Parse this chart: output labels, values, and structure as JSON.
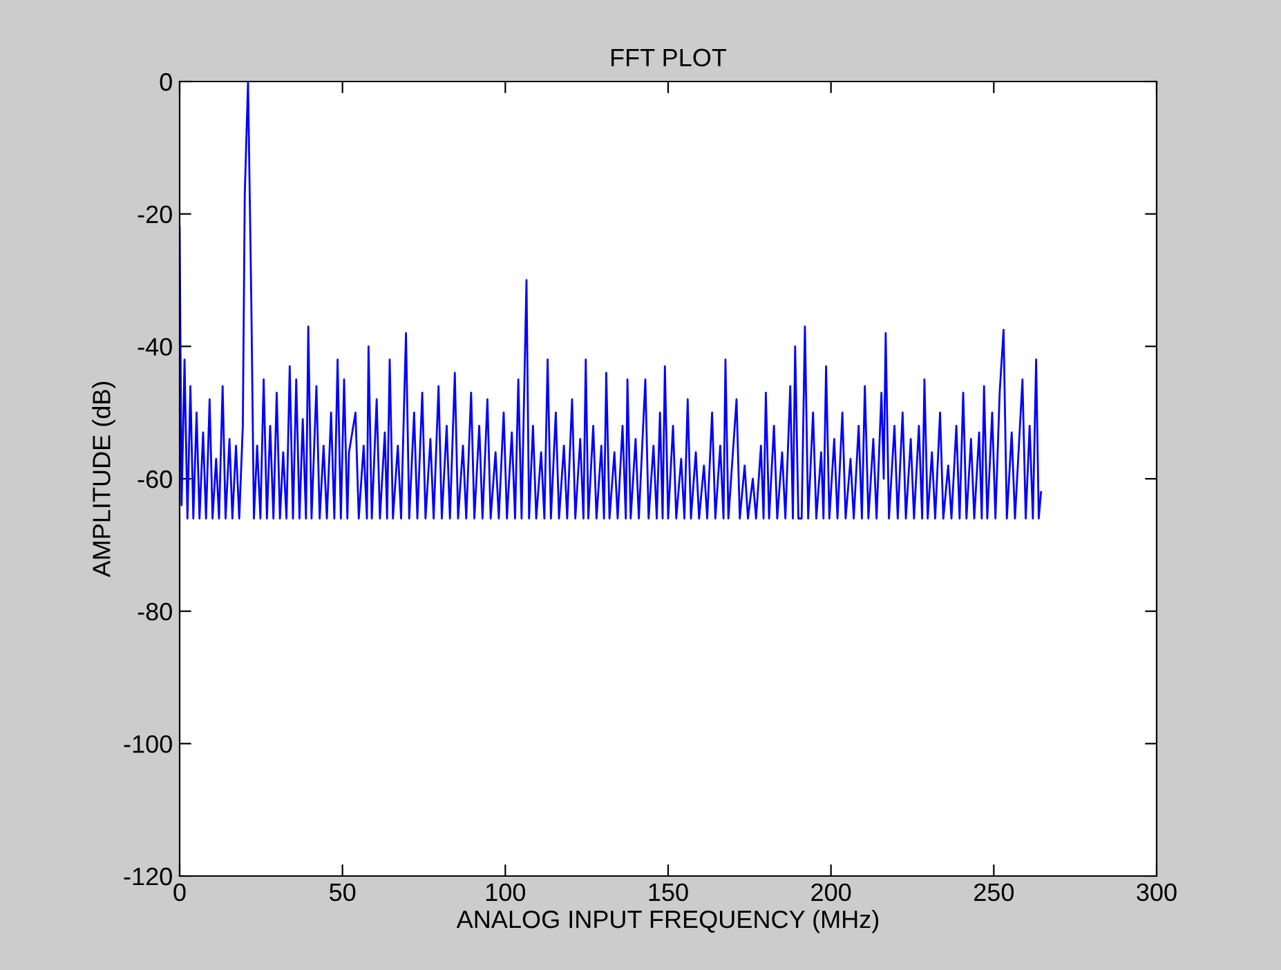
{
  "chart_data": {
    "type": "line",
    "title": "FFT PLOT",
    "xlabel": "ANALOG INPUT FREQUENCY (MHz)",
    "ylabel": "AMPLITUDE (dB)",
    "xlim": [
      0,
      300
    ],
    "ylim": [
      -120,
      0
    ],
    "xticks": [
      0,
      50,
      100,
      150,
      200,
      250,
      300
    ],
    "yticks": [
      -120,
      -100,
      -80,
      -60,
      -40,
      -20,
      0
    ],
    "grid": false,
    "marker": "none",
    "line_style": "solid",
    "series": [
      {
        "color": "#0000ff",
        "x": [
          0,
          0.6,
          1.5,
          2.4,
          3.3,
          4.2,
          5.2,
          6.1,
          7.2,
          8.1,
          9.2,
          10.1,
          11.2,
          12.1,
          13.2,
          14.1,
          15.3,
          16.2,
          17.3,
          18.3,
          19.4,
          20.0,
          21.0,
          22.0,
          22.8,
          23.8,
          24.8,
          25.8,
          26.8,
          27.8,
          28.8,
          29.8,
          30.8,
          31.8,
          32.8,
          33.8,
          34.8,
          35.8,
          36.8,
          37.8,
          38.8,
          39.5,
          40.5,
          42.0,
          43.0,
          44.2,
          45.2,
          46.5,
          47.5,
          48.5,
          49.5,
          50.5,
          51.5,
          52,
          54,
          55,
          56.5,
          57.5,
          58,
          59,
          60.5,
          61.5,
          63,
          63.7,
          64.5,
          65.5,
          67,
          68,
          69.5,
          70.5,
          72,
          73,
          74.5,
          75.5,
          77,
          78,
          79.5,
          80.5,
          82,
          83,
          84.5,
          85.5,
          87,
          88,
          89.5,
          90.5,
          92,
          93,
          94.5,
          95.5,
          97,
          98,
          99.5,
          100.5,
          102,
          103,
          104,
          105,
          106.5,
          107.3,
          108.5,
          109.5,
          111,
          112,
          113,
          114,
          115.5,
          116.5,
          118,
          119,
          120.5,
          121.5,
          123,
          124,
          124.7,
          125.5,
          127,
          128,
          129.5,
          130.3,
          131,
          132,
          133.5,
          134.5,
          136,
          137,
          137.5,
          138.5,
          140,
          141,
          143,
          144,
          145.5,
          146.5,
          147.5,
          148.3,
          149,
          150,
          151.5,
          152.5,
          154,
          155,
          156,
          157,
          158.5,
          159.5,
          161,
          162,
          163.5,
          164.5,
          166,
          167,
          167.6,
          168.5,
          171,
          172,
          173.5,
          174.5,
          176,
          177,
          178.5,
          179.3,
          180,
          181,
          182.5,
          183.5,
          185,
          186,
          187.5,
          188.3,
          189,
          190,
          191,
          192,
          193,
          194.5,
          195.5,
          197,
          197.7,
          198.5,
          199.5,
          201,
          202,
          203.5,
          204.5,
          206,
          207,
          208.5,
          209.5,
          210.4,
          211.5,
          213,
          214,
          215.5,
          216.2,
          216.8,
          217.8,
          219.5,
          220.5,
          222,
          223,
          224.5,
          225.5,
          227,
          228,
          228.7,
          229.7,
          231,
          232,
          233.5,
          234.5,
          236,
          237,
          238.5,
          239.5,
          240.6,
          241.6,
          243,
          244,
          245.5,
          246.3,
          247,
          248,
          249.5,
          250.5,
          251.8,
          253,
          254,
          255.5,
          256.5,
          258.8,
          259.8,
          261,
          262,
          263,
          263.8,
          264.5
        ],
        "values": [
          -22,
          -64,
          -42,
          -66,
          -46,
          -66,
          -50,
          -66,
          -53,
          -66,
          -48,
          -66,
          -57,
          -66,
          -46,
          -66,
          -54,
          -66,
          -55,
          -66,
          -52,
          -17,
          0,
          -33,
          -66,
          -55,
          -66,
          -45,
          -66,
          -52,
          -66,
          -47,
          -66,
          -56,
          -66,
          -43,
          -66,
          -45,
          -66,
          -51,
          -66,
          -37,
          -66,
          -46,
          -66,
          -55,
          -66,
          -50,
          -66,
          -42,
          -66,
          -45,
          -66,
          -56,
          -50,
          -66,
          -55,
          -66,
          -40,
          -66,
          -48,
          -66,
          -53,
          -66,
          -42,
          -66,
          -55,
          -66,
          -38,
          -66,
          -50,
          -66,
          -47,
          -66,
          -54,
          -66,
          -46,
          -66,
          -52,
          -66,
          -44,
          -66,
          -55,
          -66,
          -47,
          -66,
          -52,
          -66,
          -48,
          -66,
          -56,
          -66,
          -50,
          -66,
          -53,
          -66,
          -45,
          -66,
          -30,
          -66,
          -52,
          -66,
          -56,
          -66,
          -42,
          -66,
          -50,
          -66,
          -55,
          -66,
          -48,
          -66,
          -54,
          -66,
          -42,
          -66,
          -52,
          -66,
          -55,
          -66,
          -44,
          -66,
          -56,
          -66,
          -52,
          -66,
          -45,
          -66,
          -54,
          -66,
          -45,
          -66,
          -55,
          -66,
          -50,
          -66,
          -43,
          -66,
          -52,
          -66,
          -57,
          -66,
          -48,
          -66,
          -56,
          -66,
          -58,
          -66,
          -50,
          -66,
          -55,
          -66,
          -42,
          -66,
          -48,
          -66,
          -58,
          -66,
          -60,
          -66,
          -55,
          -66,
          -47,
          -66,
          -52,
          -66,
          -56,
          -66,
          -46,
          -66,
          -40,
          -66,
          -66,
          -37,
          -66,
          -50,
          -66,
          -56,
          -66,
          -43,
          -66,
          -54,
          -66,
          -50,
          -66,
          -57,
          -66,
          -52,
          -66,
          -46,
          -66,
          -54,
          -66,
          -47,
          -60,
          -38,
          -66,
          -52,
          -66,
          -50,
          -66,
          -54,
          -66,
          -52,
          -66,
          -45,
          -66,
          -56,
          -66,
          -50,
          -66,
          -58,
          -66,
          -52,
          -66,
          -47,
          -66,
          -54,
          -66,
          -53,
          -66,
          -46,
          -66,
          -50,
          -66,
          -47,
          -37.5,
          -66,
          -53,
          -66,
          -45,
          -66,
          -52,
          -66,
          -42,
          -66,
          -62
        ]
      }
    ]
  }
}
